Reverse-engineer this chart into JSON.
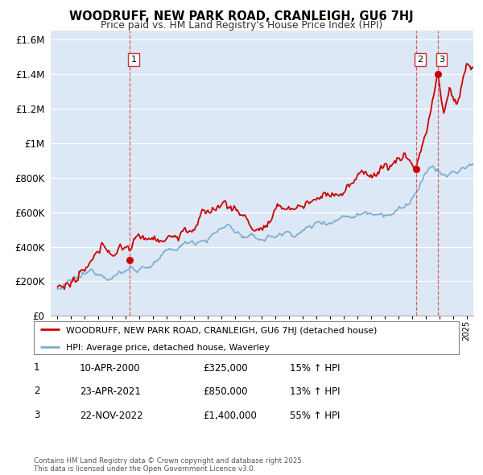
{
  "title": "WOODRUFF, NEW PARK ROAD, CRANLEIGH, GU6 7HJ",
  "subtitle": "Price paid vs. HM Land Registry's House Price Index (HPI)",
  "red_label": "WOODRUFF, NEW PARK ROAD, CRANLEIGH, GU6 7HJ (detached house)",
  "blue_label": "HPI: Average price, detached house, Waverley",
  "transactions": [
    {
      "num": 1,
      "date": "10-APR-2000",
      "price": 325000,
      "hpi_diff": "15% ↑ HPI",
      "year": 2000.28
    },
    {
      "num": 2,
      "date": "23-APR-2021",
      "price": 850000,
      "hpi_diff": "13% ↑ HPI",
      "year": 2021.31
    },
    {
      "num": 3,
      "date": "22-NOV-2022",
      "price": 1400000,
      "hpi_diff": "55% ↑ HPI",
      "year": 2022.89
    }
  ],
  "yticks": [
    0,
    200000,
    400000,
    600000,
    800000,
    1000000,
    1200000,
    1400000,
    1600000
  ],
  "ytick_labels": [
    "£0",
    "£200K",
    "£400K",
    "£600K",
    "£800K",
    "£1M",
    "£1.2M",
    "£1.4M",
    "£1.6M"
  ],
  "xmin": 1994.5,
  "xmax": 2025.5,
  "ymin": 0,
  "ymax": 1650000,
  "background_color": "#dce8f5",
  "red_color": "#cc0000",
  "blue_color": "#7aacce",
  "grid_color": "#ffffff",
  "vline_color": "#dd4444",
  "footnote": "Contains HM Land Registry data © Crown copyright and database right 2025.\nThis data is licensed under the Open Government Licence v3.0."
}
